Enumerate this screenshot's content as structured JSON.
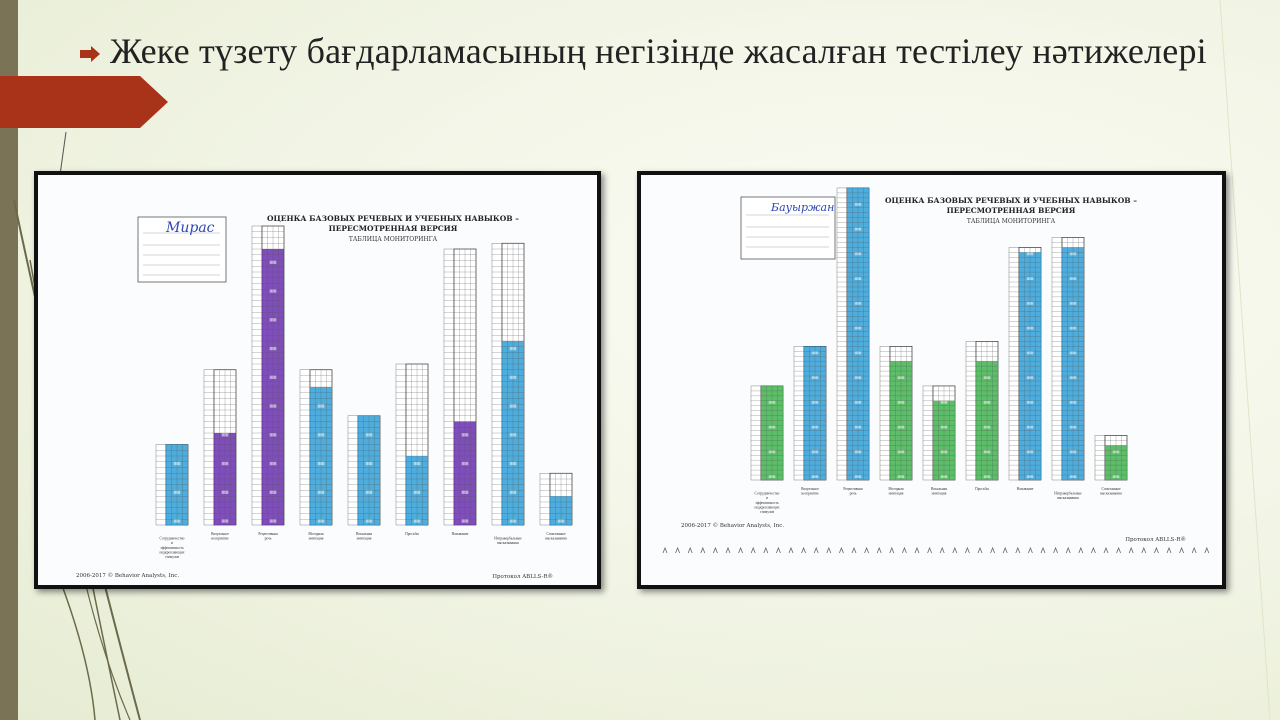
{
  "slide": {
    "title": "Жеке түзету бағдарламасының негізінде жасалған тестілеу нәтижелері"
  },
  "colors": {
    "accent_red": "#a93319",
    "side_bar": "#7a7356",
    "fill_purple": "#6a2fae",
    "fill_blue": "#2f9fd6",
    "fill_green": "#3fb34f"
  },
  "icons": {
    "bullet": "arrow-bullet-icon"
  },
  "protocol_sheet_1": {
    "heading_line1": "ОЦЕНКА БАЗОВЫХ РЕЧЕВЫХ И УЧЕБНЫХ НАВЫКОВ –",
    "heading_line2": "ПЕРЕСМОТРЕННАЯ ВЕРСИЯ",
    "heading_line3": "ТАБЛИЦА МОНИТОРИНГА",
    "handwritten_name": "Мирас",
    "footer_left": "2006-2017 © Behavior Analysts, Inc.",
    "footer_right": "Протокол ABLLS-R®"
  },
  "protocol_sheet_2": {
    "heading_line1": "ОЦЕНКА БАЗОВЫХ РЕЧЕВЫХ И УЧЕБНЫХ НАВЫКОВ –",
    "heading_line2": "ПЕРЕСМОТРЕННАЯ ВЕРСИЯ",
    "heading_line3": "ТАБЛИЦА МОНИТОРИНГА",
    "handwritten_name": "Бауыржан",
    "footer_left": "2006-2017 © Behavior Analysts, Inc.",
    "footer_right": "Протокол ABLLS-R®"
  },
  "columns_1": [
    {
      "label": "Сотрудничество и эффективность подкрепляющих стимулов",
      "items": 14,
      "filled": 14,
      "color": "blue"
    },
    {
      "label": "Визуальное восприятие",
      "items": 27,
      "filled": 16,
      "color": "purple"
    },
    {
      "label": "Рецептивная речь",
      "items": 52,
      "filled": 48,
      "color": "purple"
    },
    {
      "label": "Моторная имитация",
      "items": 27,
      "filled": 24,
      "color": "blue"
    },
    {
      "label": "Вокальная имитация",
      "items": 19,
      "filled": 19,
      "color": "blue"
    },
    {
      "label": "Просьбы",
      "items": 28,
      "filled": 12,
      "color": "blue"
    },
    {
      "label": "Называние",
      "items": 48,
      "filled": 18,
      "color": "purple"
    },
    {
      "label": "Интравербальные высказывания",
      "items": 49,
      "filled": 32,
      "color": "blue"
    },
    {
      "label": "Спонтанные высказывания",
      "items": 9,
      "filled": 5,
      "color": "blue"
    }
  ],
  "columns_2": [
    {
      "label": "Сотрудничество и эффективность подкрепляющих стимулов",
      "items": 19,
      "filled": 19,
      "color": "green"
    },
    {
      "label": "Визуальное восприятие",
      "items": 27,
      "filled": 27,
      "color": "blue"
    },
    {
      "label": "Рецептивная речь",
      "items": 59,
      "filled": 59,
      "color": "blue"
    },
    {
      "label": "Моторная имитация",
      "items": 27,
      "filled": 24,
      "color": "green"
    },
    {
      "label": "Вокальная имитация",
      "items": 19,
      "filled": 16,
      "color": "green"
    },
    {
      "label": "Просьбы",
      "items": 28,
      "filled": 24,
      "color": "green"
    },
    {
      "label": "Называние",
      "items": 47,
      "filled": 46,
      "color": "blue"
    },
    {
      "label": "Интравербальные высказывания",
      "items": 49,
      "filled": 47,
      "color": "blue"
    },
    {
      "label": "Спонтанные высказывания",
      "items": 9,
      "filled": 7,
      "color": "green"
    }
  ]
}
